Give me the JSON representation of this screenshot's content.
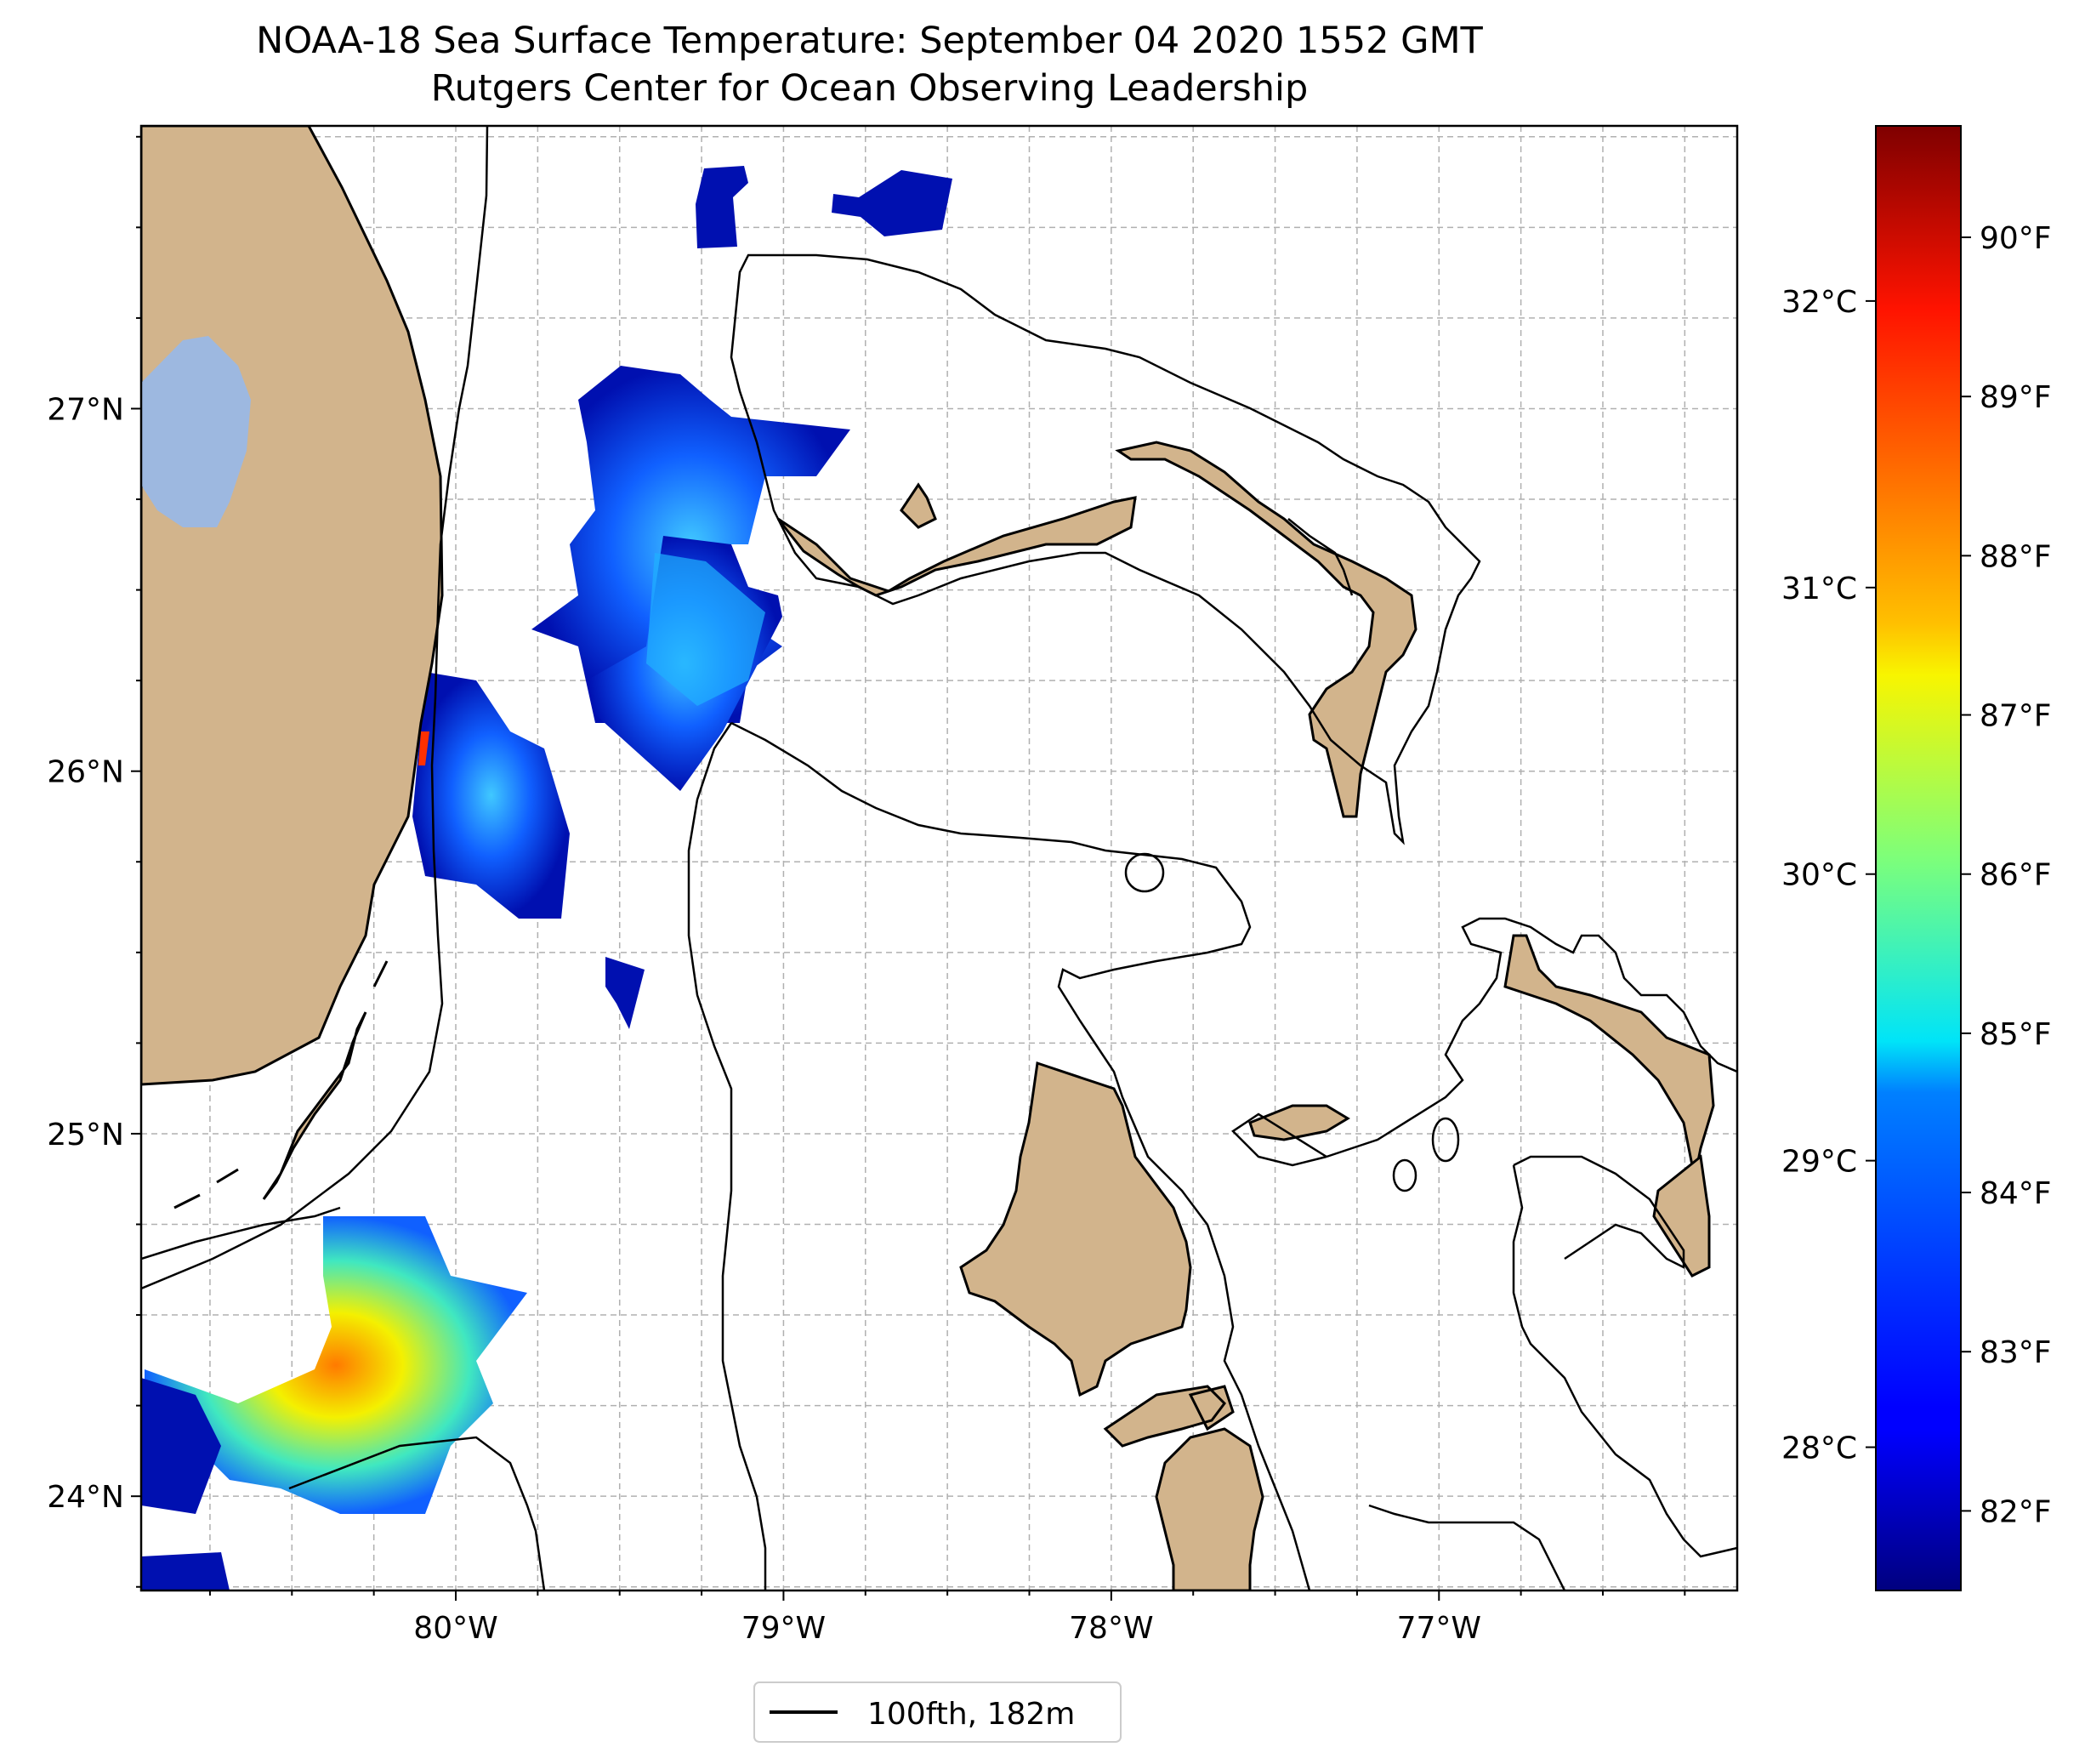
{
  "title": {
    "line1": "NOAA-18 Sea Surface Temperature: September 04 2020 1552 GMT",
    "line2": "Rutgers Center for Ocean Observing Leadership"
  },
  "map": {
    "lon_range": [
      -80.96,
      -76.09
    ],
    "lat_range": [
      23.74,
      27.78
    ],
    "gridlines": "dashed",
    "land_color": "#d2b48c",
    "lake_color": "#9db8e0",
    "contour_color": "#000000",
    "x_ticks": [
      {
        "lon": -80,
        "label": "80°W"
      },
      {
        "lon": -79,
        "label": "79°W"
      },
      {
        "lon": -78,
        "label": "78°W"
      },
      {
        "lon": -77,
        "label": "77°W"
      }
    ],
    "y_ticks": [
      {
        "lat": 27,
        "label": "27°N"
      },
      {
        "lat": 26,
        "label": "26°N"
      },
      {
        "lat": 25,
        "label": "25°N"
      },
      {
        "lat": 24,
        "label": "24°N"
      }
    ]
  },
  "legend": {
    "label": "100fth, 182m",
    "placement": "bottom-center"
  },
  "colorbar": {
    "colormap": "jet",
    "range_f": [
      81.5,
      90.7
    ],
    "celsius_ticks": [
      {
        "value_c": 32,
        "label": "32°C"
      },
      {
        "value_c": 31,
        "label": "31°C"
      },
      {
        "value_c": 30,
        "label": "30°C"
      },
      {
        "value_c": 29,
        "label": "29°C"
      },
      {
        "value_c": 28,
        "label": "28°C"
      }
    ],
    "fahrenheit_ticks": [
      {
        "value_f": 90,
        "label": "90°F"
      },
      {
        "value_f": 89,
        "label": "89°F"
      },
      {
        "value_f": 88,
        "label": "88°F"
      },
      {
        "value_f": 87,
        "label": "87°F"
      },
      {
        "value_f": 86,
        "label": "86°F"
      },
      {
        "value_f": 85,
        "label": "85°F"
      },
      {
        "value_f": 84,
        "label": "84°F"
      },
      {
        "value_f": 83,
        "label": "83°F"
      },
      {
        "value_f": 82,
        "label": "82°F"
      }
    ]
  }
}
